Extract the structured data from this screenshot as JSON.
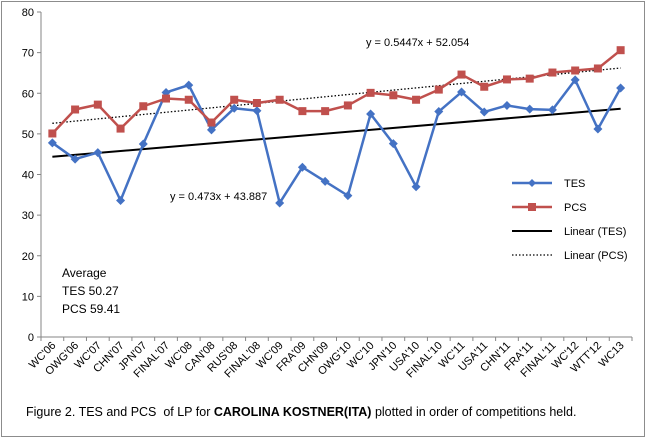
{
  "chart_data": {
    "type": "line",
    "ylim": [
      0,
      80
    ],
    "y_ticks": [
      0,
      10,
      20,
      30,
      40,
      50,
      60,
      70,
      80
    ],
    "grid": false,
    "legend_position": "right",
    "categories": [
      "WC'06",
      "OWG'06",
      "WC'07",
      "CHN'07",
      "JPN'07",
      "FINAL'07",
      "WC'08",
      "CAN'08",
      "RUS'08",
      "FINAL'08",
      "WC'09",
      "FRA'09",
      "CHN'09",
      "OWG'10",
      "WC'10",
      "JPN'10",
      "USA'10",
      "FINAL'10",
      "WC'11",
      "USA'11",
      "CHN'11",
      "FRA'11",
      "FINAL'11",
      "WC'12",
      "WTT'12",
      "WC13"
    ],
    "series": [
      {
        "name": "TES",
        "color": "#4472C4",
        "marker": "diamond",
        "values": [
          47.8,
          43.8,
          45.4,
          33.6,
          47.5,
          60.2,
          62.0,
          51.0,
          56.3,
          55.7,
          33.0,
          41.8,
          38.3,
          34.8,
          54.9,
          47.6,
          37.0,
          55.5,
          60.3,
          55.4,
          57.0,
          56.1,
          55.9,
          63.3,
          51.2,
          61.3
        ]
      },
      {
        "name": "PCS",
        "color": "#C0504D",
        "marker": "square",
        "values": [
          50.1,
          56.0,
          57.2,
          51.3,
          56.8,
          58.7,
          58.4,
          52.8,
          58.4,
          57.6,
          58.4,
          55.6,
          55.6,
          57.0,
          60.1,
          59.5,
          58.4,
          60.9,
          64.6,
          61.6,
          63.4,
          63.6,
          65.1,
          65.6,
          66.1,
          70.6
        ]
      }
    ],
    "trendlines": [
      {
        "name": "Linear (TES)",
        "slope": 0.473,
        "intercept": 43.887,
        "style": "solid",
        "color": "#000000",
        "equation": "y = 0.473x + 43.887"
      },
      {
        "name": "Linear (PCS)",
        "slope": 0.5447,
        "intercept": 52.054,
        "style": "dotted",
        "color": "#000000",
        "equation": "y = 0.5447x + 52.054"
      }
    ],
    "legend": [
      "TES",
      "PCS",
      "Linear (TES)",
      "Linear (PCS)"
    ],
    "annotation": {
      "heading": "Average",
      "tes": "TES 50.27",
      "pcs": "PCS 59.41"
    },
    "caption": {
      "prefix": "Figure 2. TES and PCS  of LP for ",
      "bold": "CAROLINA KOSTNER(ITA)",
      "suffix": " plotted in order of competitions held."
    }
  }
}
